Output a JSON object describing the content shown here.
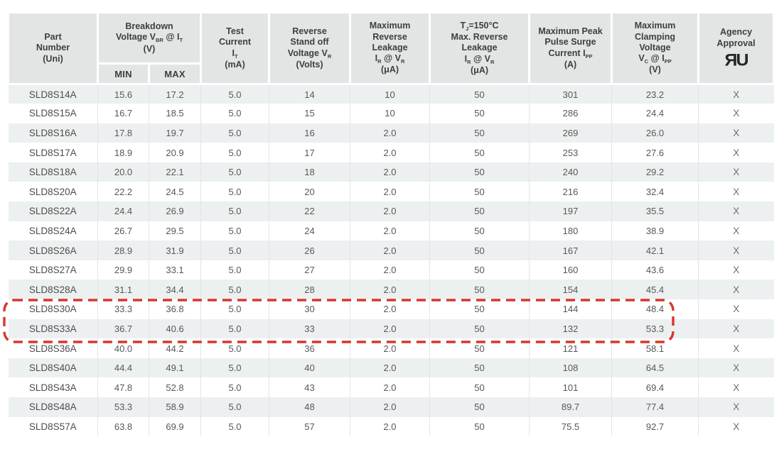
{
  "colors": {
    "page_bg": "#ffffff",
    "header_bg": "#e3e5e4",
    "stripe_bg": "#edf0f0",
    "header_text": "#3e3e3e",
    "data_text": "#585858",
    "highlight_red": "#d6372c"
  },
  "table": {
    "column_order": [
      "part",
      "breakdown",
      "test_current",
      "standoff",
      "max_reverse_leakage",
      "tj_reverse_leakage",
      "surge",
      "clamping",
      "agency"
    ],
    "header": {
      "part": {
        "lines": [
          [
            {
              "t": "Part"
            }
          ],
          [
            {
              "t": "Number"
            }
          ],
          [
            {
              "t": "(Uni)"
            }
          ]
        ]
      },
      "breakdown": {
        "lines": [
          [
            {
              "t": "Breakdown"
            }
          ],
          [
            {
              "t": "Voltage V"
            },
            {
              "s": "BR"
            },
            {
              "t": " @ I"
            },
            {
              "s": "T"
            }
          ],
          [
            {
              "t": "(V)"
            }
          ]
        ],
        "min_label": "MIN",
        "max_label": "MAX"
      },
      "test_current": {
        "lines": [
          [
            {
              "t": "Test"
            }
          ],
          [
            {
              "t": "Current"
            }
          ],
          [
            {
              "t": "I"
            },
            {
              "s": "T"
            }
          ],
          [
            {
              "t": "(mA)"
            }
          ]
        ]
      },
      "standoff": {
        "lines": [
          [
            {
              "t": "Reverse"
            }
          ],
          [
            {
              "t": "Stand off"
            }
          ],
          [
            {
              "t": "Voltage V"
            },
            {
              "s": "R"
            }
          ],
          [
            {
              "t": "(Volts)"
            }
          ]
        ]
      },
      "max_reverse_leakage": {
        "lines": [
          [
            {
              "t": "Maximum"
            }
          ],
          [
            {
              "t": "Reverse"
            }
          ],
          [
            {
              "t": "Leakage"
            }
          ],
          [
            {
              "t": "I"
            },
            {
              "s": "R"
            },
            {
              "t": " @ V"
            },
            {
              "s": "R"
            }
          ],
          [
            {
              "t": "(μA)"
            }
          ]
        ]
      },
      "tj_reverse_leakage": {
        "lines": [
          [
            {
              "t": "T"
            },
            {
              "s": "J"
            },
            {
              "t": "=150°C"
            }
          ],
          [
            {
              "t": "Max. Reverse"
            }
          ],
          [
            {
              "t": "Leakage"
            }
          ],
          [
            {
              "t": "I"
            },
            {
              "s": "R"
            },
            {
              "t": " @ V"
            },
            {
              "s": "R"
            }
          ],
          [
            {
              "t": "(μA)"
            }
          ]
        ]
      },
      "surge": {
        "lines": [
          [
            {
              "t": "Maximum Peak"
            }
          ],
          [
            {
              "t": "Pulse Surge"
            }
          ],
          [
            {
              "t": "Current I"
            },
            {
              "s": "PP"
            }
          ],
          [
            {
              "t": "(A)"
            }
          ]
        ]
      },
      "clamping": {
        "lines": [
          [
            {
              "t": "Maximum"
            }
          ],
          [
            {
              "t": "Clamping"
            }
          ],
          [
            {
              "t": "Voltage"
            }
          ],
          [
            {
              "t": "V"
            },
            {
              "s": "C"
            },
            {
              "t": " @ I"
            },
            {
              "s": "PP"
            }
          ],
          [
            {
              "t": "(V)"
            }
          ]
        ]
      },
      "agency": {
        "lines": [
          [
            {
              "t": "Agency"
            }
          ],
          [
            {
              "t": "Approval"
            }
          ]
        ],
        "icon": "ul-recognized-icon",
        "icon_glyph": "ЯU"
      }
    },
    "rows": [
      [
        "SLD8S14A",
        "15.6",
        "17.2",
        "5.0",
        "14",
        "10",
        "50",
        "301",
        "23.2",
        "X"
      ],
      [
        "SLD8S15A",
        "16.7",
        "18.5",
        "5.0",
        "15",
        "10",
        "50",
        "286",
        "24.4",
        "X"
      ],
      [
        "SLD8S16A",
        "17.8",
        "19.7",
        "5.0",
        "16",
        "2.0",
        "50",
        "269",
        "26.0",
        "X"
      ],
      [
        "SLD8S17A",
        "18.9",
        "20.9",
        "5.0",
        "17",
        "2.0",
        "50",
        "253",
        "27.6",
        "X"
      ],
      [
        "SLD8S18A",
        "20.0",
        "22.1",
        "5.0",
        "18",
        "2.0",
        "50",
        "240",
        "29.2",
        "X"
      ],
      [
        "SLD8S20A",
        "22.2",
        "24.5",
        "5.0",
        "20",
        "2.0",
        "50",
        "216",
        "32.4",
        "X"
      ],
      [
        "SLD8S22A",
        "24.4",
        "26.9",
        "5.0",
        "22",
        "2.0",
        "50",
        "197",
        "35.5",
        "X"
      ],
      [
        "SLD8S24A",
        "26.7",
        "29.5",
        "5.0",
        "24",
        "2.0",
        "50",
        "180",
        "38.9",
        "X"
      ],
      [
        "SLD8S26A",
        "28.9",
        "31.9",
        "5.0",
        "26",
        "2.0",
        "50",
        "167",
        "42.1",
        "X"
      ],
      [
        "SLD8S27A",
        "29.9",
        "33.1",
        "5.0",
        "27",
        "2.0",
        "50",
        "160",
        "43.6",
        "X"
      ],
      [
        "SLD8S28A",
        "31.1",
        "34.4",
        "5.0",
        "28",
        "2.0",
        "50",
        "154",
        "45.4",
        "X"
      ],
      [
        "SLD8S30A",
        "33.3",
        "36.8",
        "5.0",
        "30",
        "2.0",
        "50",
        "144",
        "48.4",
        "X"
      ],
      [
        "SLD8S33A",
        "36.7",
        "40.6",
        "5.0",
        "33",
        "2.0",
        "50",
        "132",
        "53.3",
        "X"
      ],
      [
        "SLD8S36A",
        "40.0",
        "44.2",
        "5.0",
        "36",
        "2.0",
        "50",
        "121",
        "58.1",
        "X"
      ],
      [
        "SLD8S40A",
        "44.4",
        "49.1",
        "5.0",
        "40",
        "2.0",
        "50",
        "108",
        "64.5",
        "X"
      ],
      [
        "SLD8S43A",
        "47.8",
        "52.8",
        "5.0",
        "43",
        "2.0",
        "50",
        "101",
        "69.4",
        "X"
      ],
      [
        "SLD8S48A",
        "53.3",
        "58.9",
        "5.0",
        "48",
        "2.0",
        "50",
        "89.7",
        "77.4",
        "X"
      ],
      [
        "SLD8S57A",
        "63.8",
        "69.9",
        "5.0",
        "57",
        "2.0",
        "50",
        "75.5",
        "92.7",
        "X"
      ]
    ],
    "highlight": {
      "parts": [
        "SLD8S30A",
        "SLD8S33A"
      ],
      "color": "#d6372c"
    }
  }
}
